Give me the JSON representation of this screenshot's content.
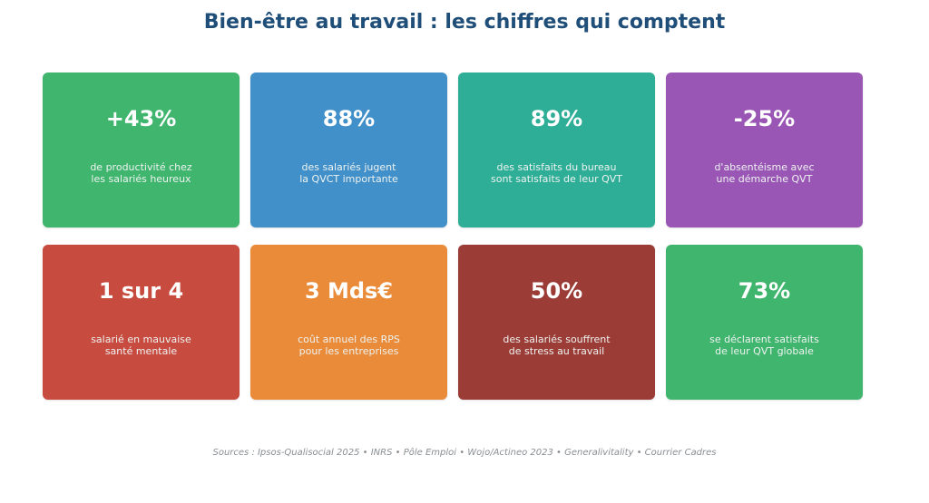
{
  "title": "Bien-être au travail : les chiffres qui comptent",
  "cards": [
    {
      "value": "+43%",
      "desc": "de productivité chez\nles salariés heureux",
      "color": "#3fb56e"
    },
    {
      "value": "88%",
      "desc": "des salariés jugent\nla QVCT importante",
      "color": "#4190c9"
    },
    {
      "value": "89%",
      "desc": "des satisfaits du bureau\nsont satisfaits de leur QVT",
      "color": "#2eae96"
    },
    {
      "value": "-25%",
      "desc": "d'absentéisme avec\nune démarche QVT",
      "color": "#9956b5"
    },
    {
      "value": "1 sur 4",
      "desc": "salarié en mauvaise\nsanté mentale",
      "color": "#c84b40"
    },
    {
      "value": "3 Mds€",
      "desc": "coût annuel des RPS\npour les entreprises",
      "color": "#e98b39"
    },
    {
      "value": "50%",
      "desc": "des salariés souffrent\nde stress au travail",
      "color": "#9b3c36"
    },
    {
      "value": "73%",
      "desc": "se déclarent satisfaits\nde leur QVT globale",
      "color": "#3fb56e"
    }
  ],
  "sources": "Sources : Ipsos-Qualisocial 2025 • INRS • Pôle Emploi • Wojo/Actineo 2023 • Generalivitality • Courrier Cadres"
}
